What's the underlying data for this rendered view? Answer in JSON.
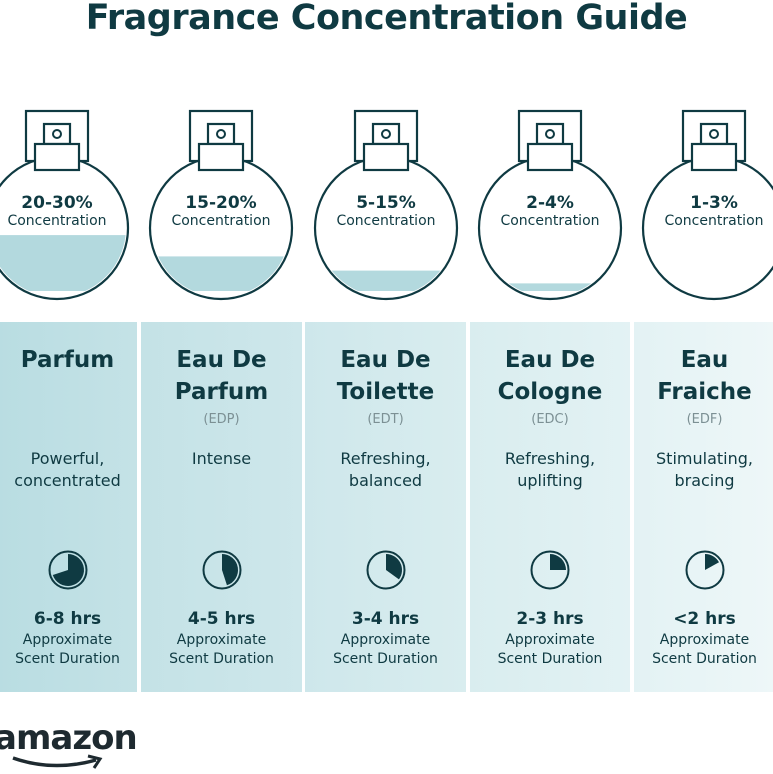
{
  "title": "Fragrance Concentration Guide",
  "colors": {
    "text": "#0f3a42",
    "liquid": "#b3d9de",
    "panel_dark": "#b9dde2",
    "panel_light": "#eaf5f7"
  },
  "types": [
    {
      "concentration": "20-30%",
      "concentration_label": "Concentration",
      "fill_level": 0.45,
      "name_line1": "Parfum",
      "name_line2": "",
      "abbr": "",
      "desc_line1": "Powerful,",
      "desc_line2": "concentrated",
      "timer_fraction": 0.7,
      "hours": "6-8 hrs",
      "duration_line1": "Approximate",
      "duration_line2": "Scent Duration",
      "icon": "timer-icon"
    },
    {
      "concentration": "15-20%",
      "concentration_label": "Concentration",
      "fill_level": 0.3,
      "name_line1": "Eau De",
      "name_line2": "Parfum",
      "abbr": "(EDP)",
      "desc_line1": "Intense",
      "desc_line2": "",
      "timer_fraction": 0.45,
      "hours": "4-5 hrs",
      "duration_line1": "Approximate",
      "duration_line2": "Scent Duration",
      "icon": "timer-icon"
    },
    {
      "concentration": "5-15%",
      "concentration_label": "Concentration",
      "fill_level": 0.2,
      "name_line1": "Eau De",
      "name_line2": "Toilette",
      "abbr": "(EDT)",
      "desc_line1": "Refreshing,",
      "desc_line2": "balanced",
      "timer_fraction": 0.35,
      "hours": "3-4 hrs",
      "duration_line1": "Approximate",
      "duration_line2": "Scent Duration",
      "icon": "timer-icon"
    },
    {
      "concentration": "2-4%",
      "concentration_label": "Concentration",
      "fill_level": 0.11,
      "name_line1": "Eau De",
      "name_line2": "Cologne",
      "abbr": "(EDC)",
      "desc_line1": "Refreshing,",
      "desc_line2": "uplifting",
      "timer_fraction": 0.25,
      "hours": "2-3 hrs",
      "duration_line1": "Approximate",
      "duration_line2": "Scent Duration",
      "icon": "timer-icon"
    },
    {
      "concentration": "1-3%",
      "concentration_label": "Concentration",
      "fill_level": 0.05,
      "name_line1": "Eau",
      "name_line2": "Fraiche",
      "abbr": "(EDF)",
      "desc_line1": "Stimulating,",
      "desc_line2": "bracing",
      "timer_fraction": 0.17,
      "hours": "<2 hrs",
      "duration_line1": "Approximate",
      "duration_line2": "Scent Duration",
      "icon": "timer-icon"
    }
  ],
  "logo": {
    "text": "amazon"
  }
}
